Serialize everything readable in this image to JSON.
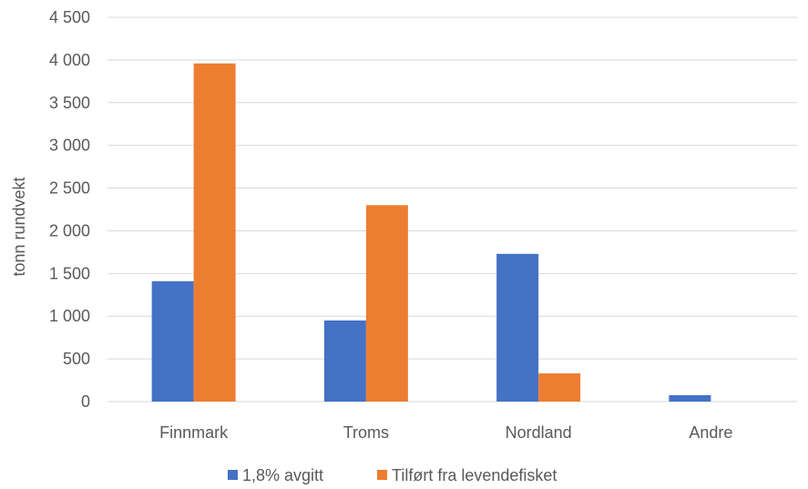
{
  "chart_data": {
    "type": "bar",
    "categories": [
      "Finnmark",
      "Troms",
      "Nordland",
      "Andre"
    ],
    "series": [
      {
        "name": "1,8% avgitt",
        "color": "#4472C4",
        "values": [
          1410,
          950,
          1730,
          75
        ]
      },
      {
        "name": "Tilført fra levendefisket",
        "color": "#ED7D31",
        "values": [
          3960,
          2300,
          330,
          0
        ]
      }
    ],
    "title": "",
    "xlabel": "",
    "ylabel": "tonn rundvekt",
    "ylim": [
      0,
      4500
    ],
    "yticks": [
      0,
      500,
      1000,
      1500,
      2000,
      2500,
      3000,
      3500,
      4000,
      4500
    ],
    "ytick_labels": [
      "0",
      "500",
      "1 000",
      "1 500",
      "2 000",
      "2 500",
      "3 000",
      "3 500",
      "4 000",
      "4 500"
    ],
    "grid": true,
    "legend_position": "bottom"
  }
}
